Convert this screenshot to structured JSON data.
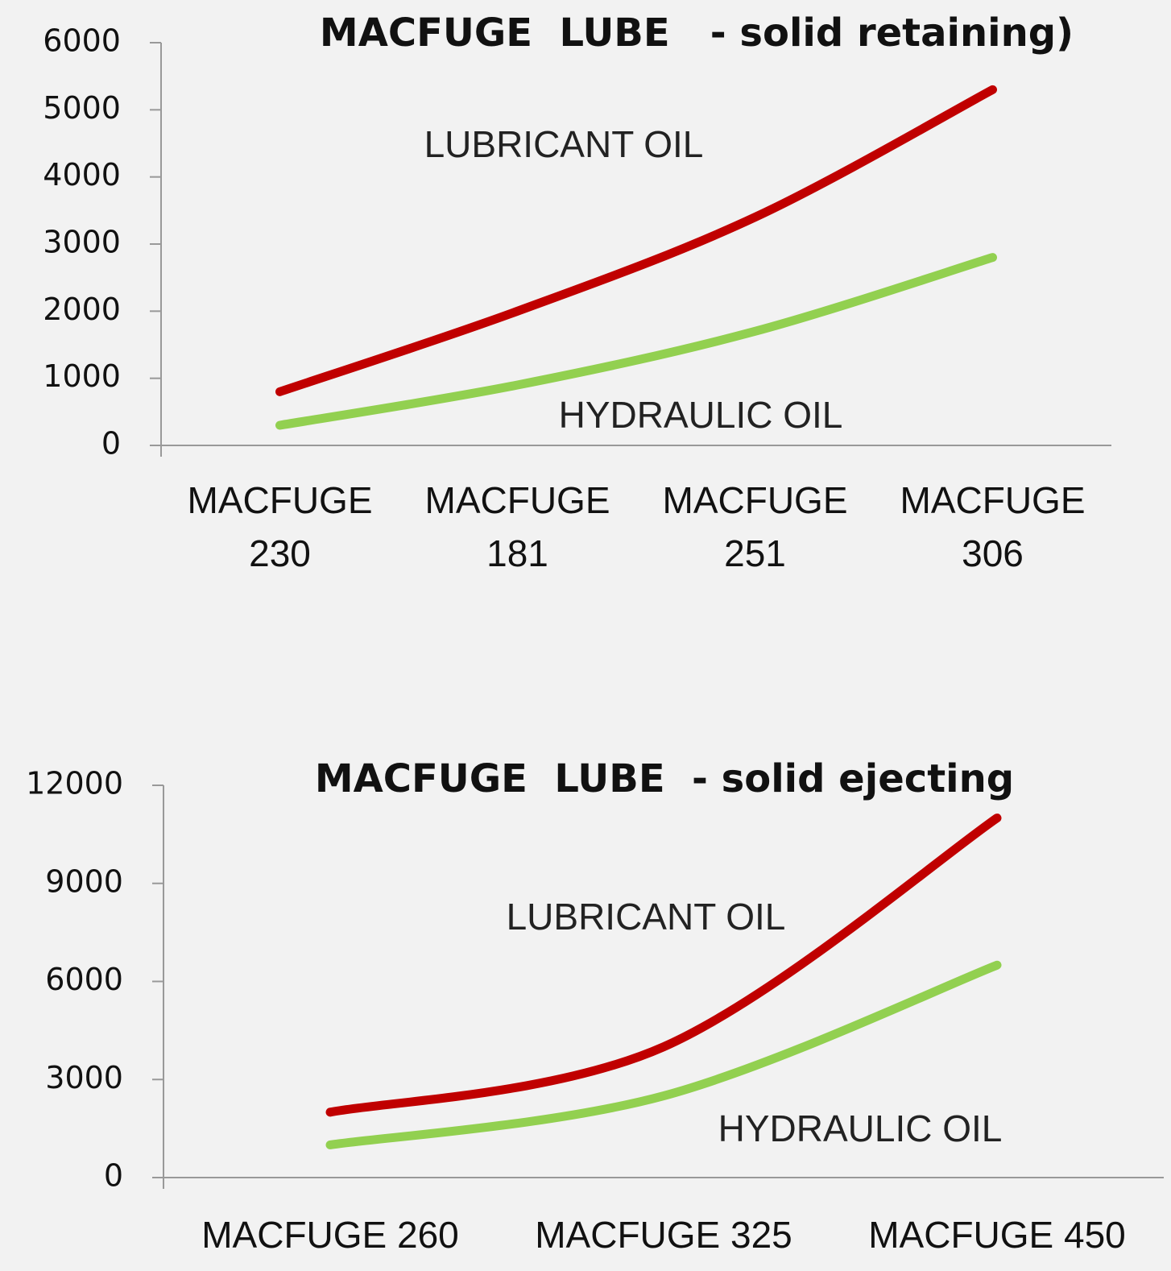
{
  "chart_data": [
    {
      "type": "line",
      "title": "MACFUGE  LUBE   - solid retaining)",
      "categories": [
        "MACFUGE 230",
        "MACFUGE 181",
        "MACFUGE 251",
        "MACFUGE 306"
      ],
      "series": [
        {
          "name": "LUBRICANT OIL",
          "color": "#c00000",
          "values": [
            800,
            2000,
            3400,
            5300
          ]
        },
        {
          "name": "HYDRAULIC OIL",
          "color": "#92d050",
          "values": [
            300,
            900,
            1700,
            2800
          ]
        }
      ],
      "ylim": [
        0,
        6000
      ],
      "yticks": [
        0,
        1000,
        2000,
        3000,
        4000,
        5000,
        6000
      ]
    },
    {
      "type": "line",
      "title": "MACFUGE  LUBE  - solid ejecting",
      "categories": [
        "MACFUGE 260",
        "MACFUGE 325",
        "MACFUGE 450"
      ],
      "series": [
        {
          "name": "LUBRICANT OIL",
          "color": "#c00000",
          "values": [
            2000,
            4000,
            11000
          ]
        },
        {
          "name": "HYDRAULIC OIL",
          "color": "#92d050",
          "values": [
            1000,
            2500,
            6500
          ]
        }
      ],
      "ylim": [
        0,
        12000
      ],
      "yticks": [
        0,
        3000,
        6000,
        9000,
        12000
      ]
    }
  ]
}
